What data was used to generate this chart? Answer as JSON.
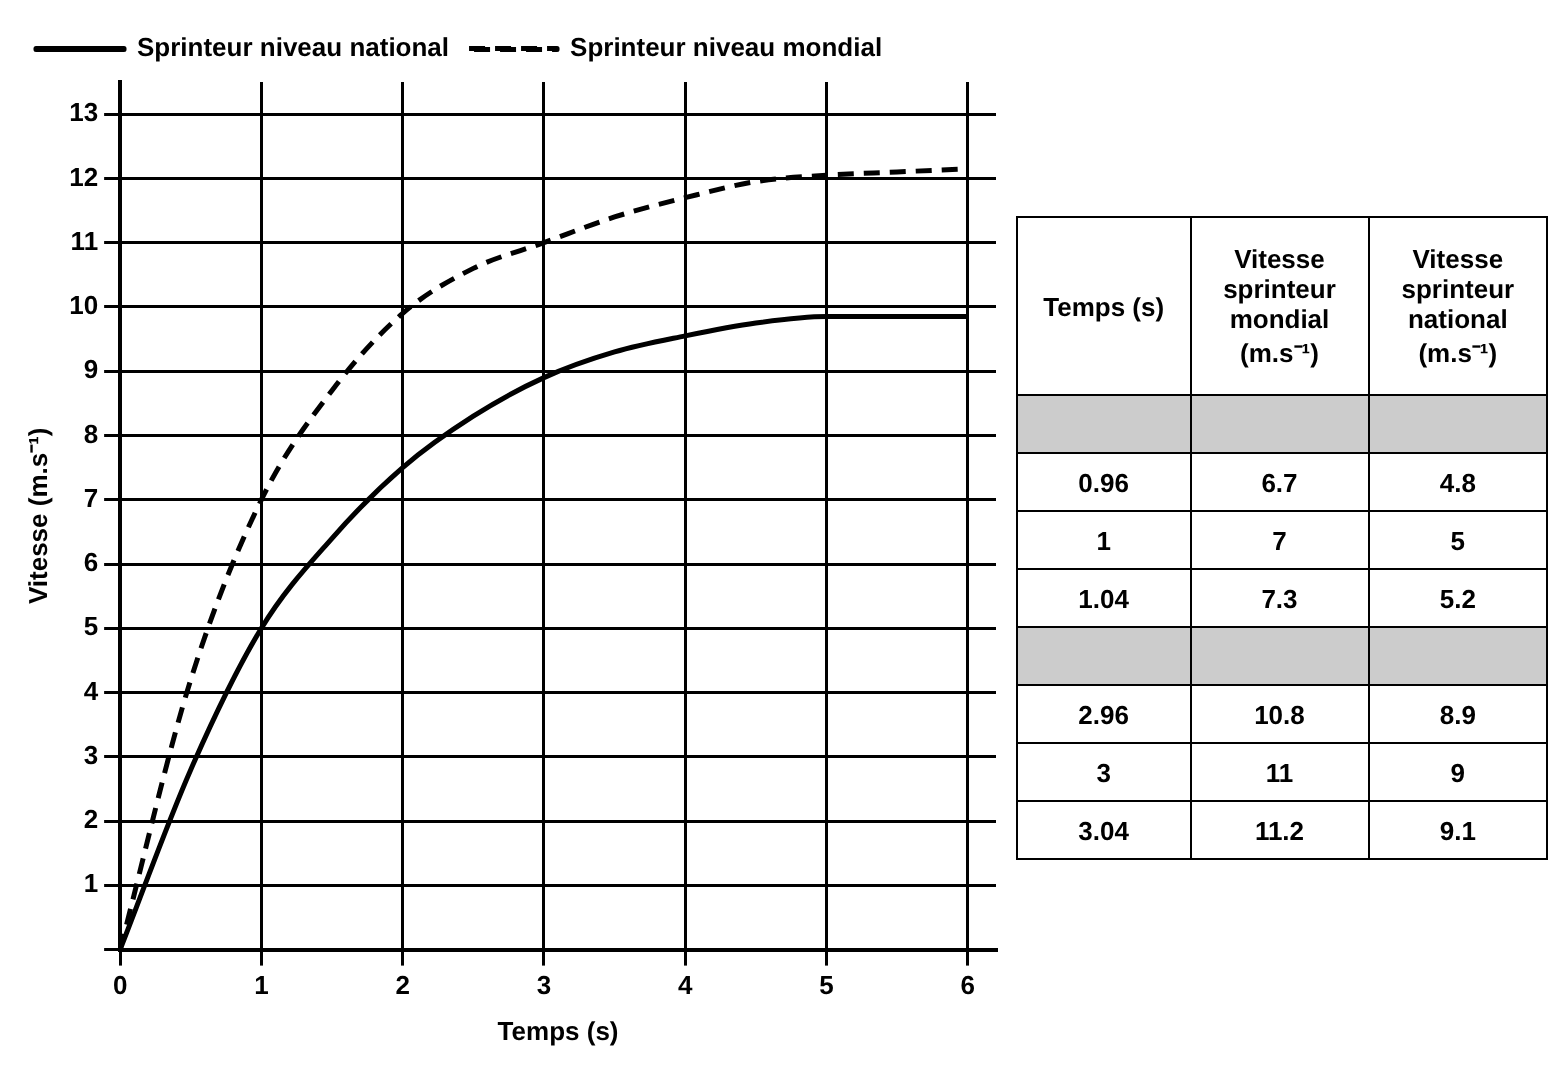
{
  "chart_data": [
    {
      "type": "line",
      "xlabel": "Temps (s)",
      "ylabel": "Vitesse (m.s⁻¹)",
      "x": [
        0,
        0.5,
        1,
        1.5,
        2,
        2.5,
        3,
        3.5,
        4,
        4.5,
        5,
        5.5,
        6
      ],
      "series": [
        {
          "name": "Sprinteur niveau national",
          "color": "#000000",
          "line_style": "solid",
          "values": [
            0,
            2.8,
            5,
            6.4,
            7.5,
            8.3,
            8.9,
            9.3,
            9.55,
            9.75,
            9.85,
            9.85,
            9.85
          ]
        },
        {
          "name": "Sprinteur niveau mondial",
          "color": "#000000",
          "line_style": "dashed",
          "values": [
            0,
            4.2,
            7,
            8.7,
            9.9,
            10.6,
            11,
            11.4,
            11.7,
            11.95,
            12.05,
            12.1,
            12.15
          ]
        }
      ],
      "xlim": [
        0,
        6.2
      ],
      "xticks": [
        0,
        1,
        2,
        3,
        4,
        5,
        6
      ],
      "ylim": [
        0,
        13.5
      ],
      "yticks": [
        {
          "value": 0,
          "label": null
        },
        1,
        2,
        3,
        4,
        5,
        6,
        7,
        8,
        9,
        10,
        11,
        12,
        13
      ],
      "grid": true,
      "legend": "top",
      "marker": "none"
    },
    {
      "type": "other",
      "categories": [
        "Temps (s)",
        "Vitesse sprinteur mondial (m.s⁻¹)",
        "Vitesse sprinteur national (m.s⁻¹)"
      ],
      "annotations": [
        "0.96",
        "6.7",
        "4.8",
        "1",
        "7",
        "5",
        "1.04",
        "7.3",
        "5.2",
        "2.96",
        "10.8",
        "8.9",
        "3",
        "11",
        "9",
        "3.04",
        "11.2",
        "9.1"
      ]
    }
  ]
}
